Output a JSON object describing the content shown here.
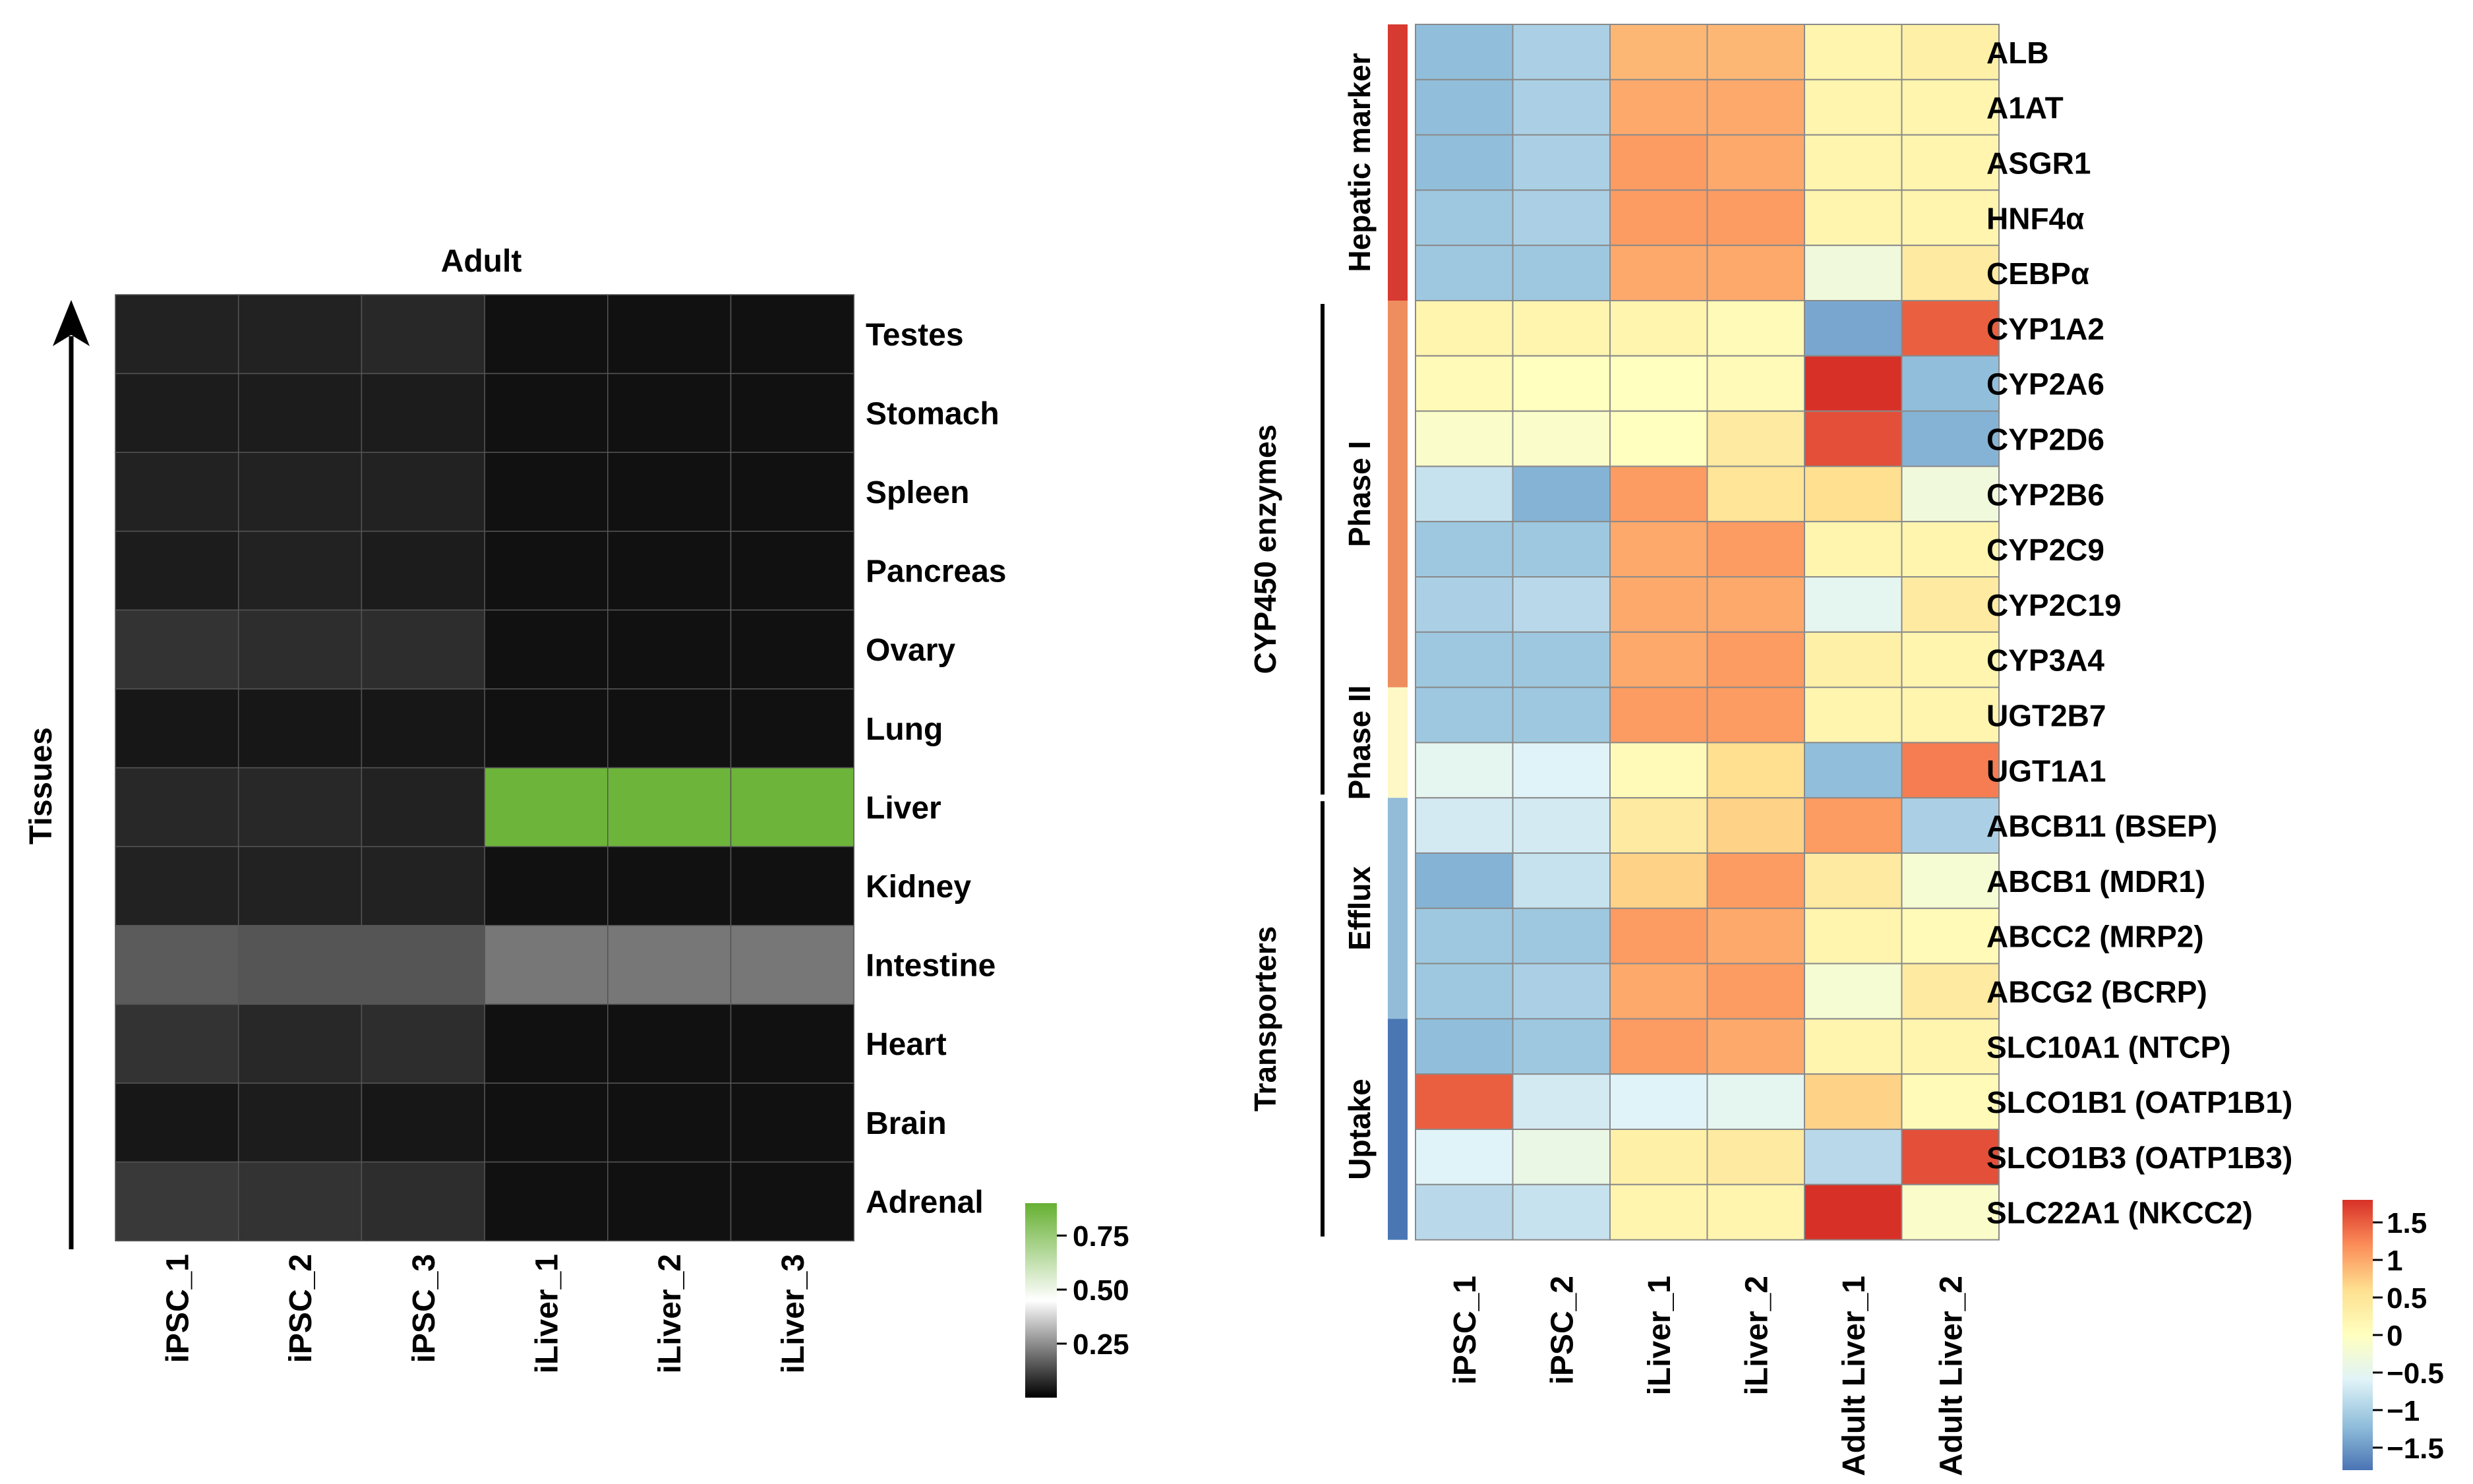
{
  "chart_data": [
    {
      "type": "heatmap",
      "title": "Adult",
      "ylabel": "Tissues",
      "xlabel": "",
      "columns": [
        "iPSC_1",
        "iPSC_2",
        "iPSC_3",
        "iLiver_1",
        "iLiver_2",
        "iLiver_3"
      ],
      "rows": [
        "Testes",
        "Stomach",
        "Spleen",
        "Pancreas",
        "Ovary",
        "Lung",
        "Liver",
        "Kidney",
        "Intestine",
        "Heart",
        "Brain",
        "Adrenal"
      ],
      "values": [
        [
          0.06,
          0.06,
          0.07,
          0.03,
          0.03,
          0.03
        ],
        [
          0.05,
          0.05,
          0.05,
          0.03,
          0.03,
          0.03
        ],
        [
          0.06,
          0.06,
          0.06,
          0.03,
          0.03,
          0.03
        ],
        [
          0.05,
          0.06,
          0.05,
          0.03,
          0.03,
          0.03
        ],
        [
          0.09,
          0.08,
          0.08,
          0.03,
          0.03,
          0.03
        ],
        [
          0.04,
          0.04,
          0.04,
          0.03,
          0.03,
          0.03
        ],
        [
          0.07,
          0.07,
          0.06,
          0.88,
          0.88,
          0.88
        ],
        [
          0.06,
          0.06,
          0.06,
          0.03,
          0.03,
          0.03
        ],
        [
          0.16,
          0.15,
          0.15,
          0.21,
          0.21,
          0.21
        ],
        [
          0.09,
          0.07,
          0.08,
          0.03,
          0.03,
          0.03
        ],
        [
          0.04,
          0.05,
          0.04,
          0.03,
          0.03,
          0.03
        ],
        [
          0.1,
          0.09,
          0.08,
          0.03,
          0.03,
          0.03
        ]
      ],
      "color_scale": {
        "min": 0.0,
        "max": 0.9,
        "colors": [
          "#000000",
          "#ffffff",
          "#66b032"
        ]
      },
      "legend_ticks": [
        0.75,
        0.5,
        0.25
      ],
      "legend_tick_labels": [
        "0.75",
        "0.50",
        "0.25"
      ],
      "legend_position": "bottom-right"
    },
    {
      "type": "heatmap",
      "title": "",
      "columns": [
        "iPSC_1",
        "iPSC_2",
        "iLiver_1",
        "iLiver_2",
        "Adult Liver_1",
        "Adult Liver_2"
      ],
      "rows": [
        "ALB",
        "A1AT",
        "ASGR1",
        "HNF4α",
        "CEBPα",
        "CYP1A2",
        "CYP2A6",
        "CYP2D6",
        "CYP2B6",
        "CYP2C9",
        "CYP2C19",
        "CYP3A4",
        "UGT2B7",
        "UGT1A1",
        "ABCB11 (BSEP)",
        "ABCB1 (MDR1)",
        "ABCC2 (MRP2)",
        "ABCG2 (BCRP)",
        "SLC10A1 (NTCP)",
        "SLCO1B1 (OATP1B1)",
        "SLCO1B3 (OATP1B3)",
        "SLC22A1 (NKCC2)"
      ],
      "values": [
        [
          -1.2,
          -1.0,
          0.9,
          0.9,
          0.2,
          0.3
        ],
        [
          -1.2,
          -1.0,
          1.0,
          1.0,
          0.2,
          0.2
        ],
        [
          -1.2,
          -1.0,
          1.1,
          1.0,
          0.2,
          0.2
        ],
        [
          -1.1,
          -1.0,
          1.1,
          1.1,
          0.2,
          0.2
        ],
        [
          -1.1,
          -1.1,
          1.0,
          1.0,
          -0.3,
          0.4
        ],
        [
          0.2,
          0.2,
          0.2,
          0.1,
          -1.4,
          1.5
        ],
        [
          0.1,
          0.0,
          0.0,
          0.1,
          1.8,
          -1.2
        ],
        [
          -0.1,
          -0.1,
          0.0,
          0.4,
          1.6,
          -1.3
        ],
        [
          -0.8,
          -1.3,
          1.1,
          0.5,
          0.6,
          -0.3
        ],
        [
          -1.1,
          -1.1,
          1.0,
          1.1,
          0.2,
          0.2
        ],
        [
          -1.0,
          -0.9,
          1.0,
          1.0,
          -0.5,
          0.4
        ],
        [
          -1.1,
          -1.1,
          1.0,
          1.1,
          0.3,
          0.2
        ],
        [
          -1.1,
          -1.1,
          1.1,
          1.1,
          0.2,
          0.2
        ],
        [
          -0.5,
          -0.6,
          0.1,
          0.6,
          -1.2,
          1.3
        ],
        [
          -0.7,
          -0.7,
          0.4,
          0.7,
          1.1,
          -1.0
        ],
        [
          -1.3,
          -0.8,
          0.7,
          1.1,
          0.4,
          -0.2
        ],
        [
          -1.1,
          -1.1,
          1.1,
          1.0,
          0.2,
          0.1
        ],
        [
          -1.1,
          -1.0,
          1.0,
          1.1,
          -0.2,
          0.4
        ],
        [
          -1.2,
          -1.1,
          1.1,
          1.0,
          0.2,
          0.2
        ],
        [
          1.5,
          -0.7,
          -0.6,
          -0.5,
          0.7,
          0.1
        ],
        [
          -0.6,
          -0.4,
          0.3,
          0.4,
          -0.9,
          1.6
        ],
        [
          -0.9,
          -0.8,
          0.2,
          0.2,
          1.8,
          -0.1
        ]
      ],
      "color_scale": {
        "min": -1.8,
        "max": 1.8,
        "colors": [
          "#4a74b4",
          "#91bfdb",
          "#e0f3f8",
          "#ffffbf",
          "#fee090",
          "#fc8d59",
          "#d73027"
        ]
      },
      "row_groups": [
        {
          "label": "Hepatic marker",
          "rows": 5,
          "color": "#d73a31"
        },
        {
          "label": "Phase I",
          "rows": 7,
          "color": "#ee8e5e"
        },
        {
          "label": "Phase II",
          "rows": 2,
          "color": "#fdf8c6"
        },
        {
          "label": "Efflux",
          "rows": 4,
          "color": "#92bcd8"
        },
        {
          "label": "Uptake",
          "rows": 4,
          "color": "#4a76b4"
        }
      ],
      "outer_groups": [
        {
          "label": "CYP450 enzymes",
          "from_row": 5,
          "to_row": 13
        },
        {
          "label": "Transporters",
          "from_row": 14,
          "to_row": 21
        }
      ],
      "legend_ticks": [
        1.5,
        1,
        0.5,
        0,
        -0.5,
        -1,
        -1.5
      ],
      "legend_tick_labels": [
        "1.5",
        "1",
        "0.5",
        "0",
        "−0.5",
        "−1",
        "−1.5"
      ],
      "legend_position": "bottom-right"
    }
  ]
}
